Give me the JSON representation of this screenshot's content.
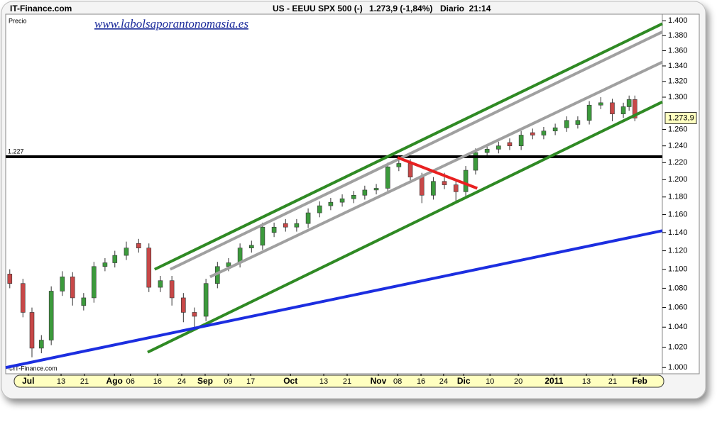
{
  "chart_data": {
    "type": "candlestick",
    "source": "IT-Finance.com",
    "instrument": "US - EEUU SPX 500 (-)",
    "quote": "1.273,9 (-1,84%)",
    "period": "Diario  21:14",
    "y_label": "Precio",
    "watermark": "www.labolsaporantonomasia.es",
    "copyright": "©IT-Finance.com",
    "log_scale": true,
    "xlim": [
      0,
      160
    ],
    "ylim": [
      994,
      1409
    ],
    "xticks": [
      {
        "value": 5.5,
        "label": "Jul"
      },
      {
        "value": 13.5,
        "label": "13"
      },
      {
        "value": 19.2,
        "label": "21"
      },
      {
        "value": 26.5,
        "label": "Ago"
      },
      {
        "value": 30.4,
        "label": "06"
      },
      {
        "value": 37,
        "label": "16"
      },
      {
        "value": 42.9,
        "label": "24"
      },
      {
        "value": 48.6,
        "label": "Sep"
      },
      {
        "value": 54.2,
        "label": "09"
      },
      {
        "value": 59.7,
        "label": "17"
      },
      {
        "value": 69.4,
        "label": "Oct"
      },
      {
        "value": 77.5,
        "label": "13"
      },
      {
        "value": 83.2,
        "label": "21"
      },
      {
        "value": 90.8,
        "label": "Nov"
      },
      {
        "value": 95.5,
        "label": "08"
      },
      {
        "value": 101.2,
        "label": "16"
      },
      {
        "value": 106.7,
        "label": "24"
      },
      {
        "value": 111.6,
        "label": "Dic"
      },
      {
        "value": 118,
        "label": "10"
      },
      {
        "value": 124.9,
        "label": "20"
      },
      {
        "value": 133.6,
        "label": "2011"
      },
      {
        "value": 141.5,
        "label": "13"
      },
      {
        "value": 147.9,
        "label": "21"
      },
      {
        "value": 154.5,
        "label": "Feb"
      }
    ],
    "yticks": [
      {
        "value": 1000,
        "label": "1.000"
      },
      {
        "value": 1020,
        "label": "1.020"
      },
      {
        "value": 1040,
        "label": "1.040"
      },
      {
        "value": 1060,
        "label": "1.060"
      },
      {
        "value": 1080,
        "label": "1.080"
      },
      {
        "value": 1100,
        "label": "1.100"
      },
      {
        "value": 1120,
        "label": "1.120"
      },
      {
        "value": 1140,
        "label": "1.140"
      },
      {
        "value": 1160,
        "label": "1.160"
      },
      {
        "value": 1180,
        "label": "1.180"
      },
      {
        "value": 1200,
        "label": "1.200"
      },
      {
        "value": 1220,
        "label": "1.220"
      },
      {
        "value": 1240,
        "label": "1.240"
      },
      {
        "value": 1260,
        "label": "1.260"
      },
      {
        "value": 1300,
        "label": "1.300"
      },
      {
        "value": 1320,
        "label": "1.320"
      },
      {
        "value": 1340,
        "label": "1.340"
      },
      {
        "value": 1360,
        "label": "1.360"
      },
      {
        "value": 1380,
        "label": "1.380"
      },
      {
        "value": 1400,
        "label": "1.400"
      }
    ],
    "up_color": "#3c9a3c",
    "down_color": "#c84848",
    "candles": {
      "x": [
        1.0,
        4.2,
        6.4,
        8.7,
        11.1,
        13.8,
        16.3,
        19.0,
        21.5,
        24.2,
        26.6,
        29.4,
        32.4,
        34.9,
        37.7,
        40.5,
        43.3,
        46.0,
        48.8,
        51.6,
        54.3,
        57.1,
        59.9,
        62.6,
        65.4,
        68.2,
        70.9,
        73.7,
        76.5,
        79.2,
        82.0,
        84.8,
        87.5,
        90.3,
        93.1,
        95.8,
        98.6,
        101.4,
        104.2,
        106.9,
        109.7,
        112.1,
        114.5,
        117.3,
        120.1,
        122.8,
        125.6,
        128.4,
        131.1,
        133.9,
        136.7,
        139.4,
        142.2,
        145.0,
        147.8,
        150.5,
        151.9,
        153.3
      ],
      "open": [
        1095,
        1085,
        1055,
        1019,
        1027,
        1077,
        1092,
        1062,
        1070,
        1103,
        1107,
        1115,
        1128,
        1123,
        1081,
        1088,
        1070,
        1055,
        1051,
        1085,
        1103,
        1107,
        1123,
        1126,
        1140,
        1150,
        1146,
        1150,
        1162,
        1170,
        1174,
        1178,
        1182,
        1188,
        1190,
        1215,
        1219,
        1203,
        1182,
        1198,
        1194,
        1186,
        1211,
        1232,
        1236,
        1244,
        1240,
        1256,
        1253,
        1258,
        1262,
        1266,
        1271,
        1290,
        1293,
        1279,
        1288,
        1297
      ],
      "high": [
        1100,
        1090,
        1060,
        1032,
        1082,
        1098,
        1097,
        1075,
        1108,
        1112,
        1120,
        1130,
        1133,
        1128,
        1093,
        1093,
        1075,
        1060,
        1090,
        1108,
        1112,
        1128,
        1131,
        1151,
        1151,
        1155,
        1155,
        1167,
        1175,
        1179,
        1183,
        1187,
        1193,
        1195,
        1220,
        1228,
        1224,
        1208,
        1203,
        1208,
        1199,
        1216,
        1237,
        1241,
        1245,
        1249,
        1258,
        1261,
        1263,
        1267,
        1276,
        1276,
        1295,
        1300,
        1298,
        1293,
        1302,
        1302
      ],
      "low": [
        1080,
        1050,
        1010,
        1014,
        1022,
        1072,
        1062,
        1057,
        1065,
        1098,
        1102,
        1110,
        1118,
        1076,
        1076,
        1062,
        1045,
        1040,
        1046,
        1080,
        1098,
        1102,
        1118,
        1121,
        1135,
        1141,
        1141,
        1145,
        1157,
        1165,
        1169,
        1173,
        1177,
        1183,
        1185,
        1210,
        1198,
        1173,
        1177,
        1189,
        1175,
        1181,
        1206,
        1227,
        1231,
        1235,
        1235,
        1248,
        1248,
        1253,
        1257,
        1261,
        1266,
        1285,
        1270,
        1274,
        1283,
        1270
      ],
      "close": [
        1085,
        1055,
        1019,
        1027,
        1077,
        1092,
        1070,
        1070,
        1103,
        1107,
        1115,
        1123,
        1123,
        1081,
        1088,
        1070,
        1055,
        1051,
        1085,
        1103,
        1107,
        1123,
        1126,
        1146,
        1146,
        1146,
        1150,
        1162,
        1170,
        1174,
        1178,
        1182,
        1188,
        1190,
        1215,
        1219,
        1203,
        1182,
        1198,
        1194,
        1186,
        1211,
        1232,
        1236,
        1240,
        1240,
        1253,
        1253,
        1258,
        1262,
        1271,
        1271,
        1290,
        1293,
        1279,
        1288,
        1297,
        1273.9
      ]
    },
    "last_price": {
      "value": 1273.9,
      "label": "1.273,9"
    },
    "hlines": [
      {
        "value": 1227,
        "label": "1.227",
        "color": "#000000"
      }
    ],
    "lines": [
      {
        "x": [
          36.3,
          160
        ],
        "y": [
          1100,
          1396
        ],
        "color": "#2f8a24"
      },
      {
        "x": [
          40.1,
          160
        ],
        "y": [
          1100,
          1385
        ],
        "color": "#a0a0a0"
      },
      {
        "x": [
          49.8,
          160
        ],
        "y": [
          1092,
          1345
        ],
        "color": "#a0a0a0"
      },
      {
        "x": [
          34.6,
          160
        ],
        "y": [
          1015,
          1294
        ],
        "color": "#2f8a24"
      },
      {
        "x": [
          0,
          160
        ],
        "y": [
          1000,
          1142
        ],
        "color": "#1c2ee0"
      },
      {
        "x": [
          95.5,
          114.9
        ],
        "y": [
          1226,
          1190
        ],
        "color": "#e82020"
      }
    ]
  }
}
